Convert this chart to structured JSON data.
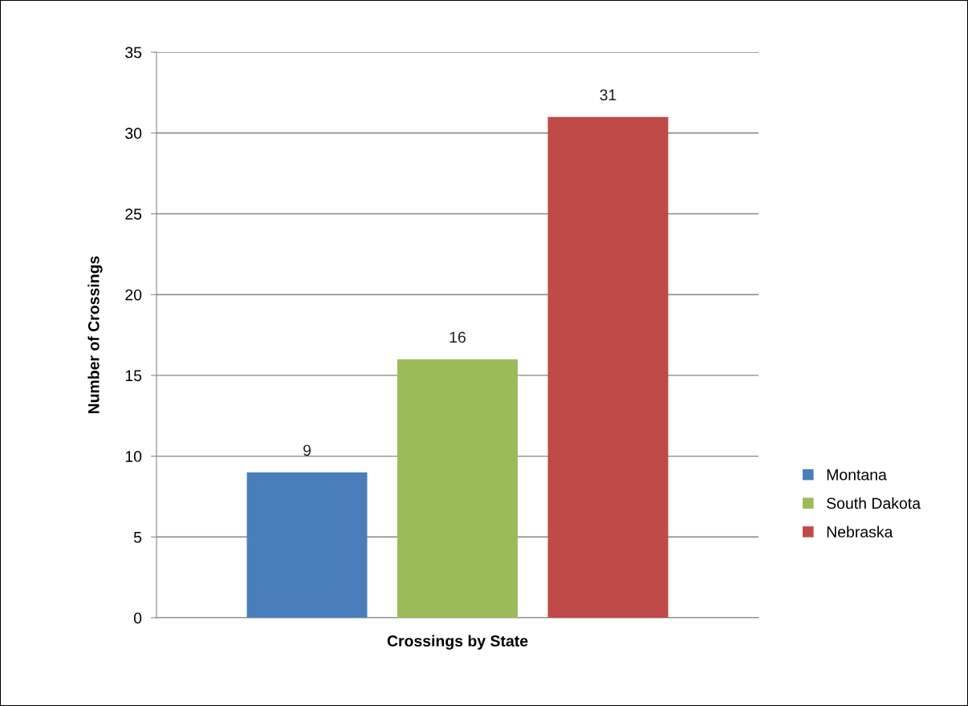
{
  "chart_data": {
    "type": "bar",
    "xlabel": "Crossings by State",
    "ylabel": "Number of Crossings",
    "categories": [
      null
    ],
    "series": [
      {
        "name": "Montana",
        "color": "#4a7ebb",
        "values": [
          9
        ]
      },
      {
        "name": "South Dakota",
        "color": "#9bbb59",
        "values": [
          16
        ]
      },
      {
        "name": "Nebraska",
        "color": "#be4b48",
        "values": [
          31
        ]
      }
    ],
    "ylim": [
      0,
      35
    ],
    "yticks": [
      0,
      5,
      10,
      15,
      20,
      25,
      30,
      35
    ],
    "grid": "y",
    "legend": "right",
    "data_labels": true
  }
}
